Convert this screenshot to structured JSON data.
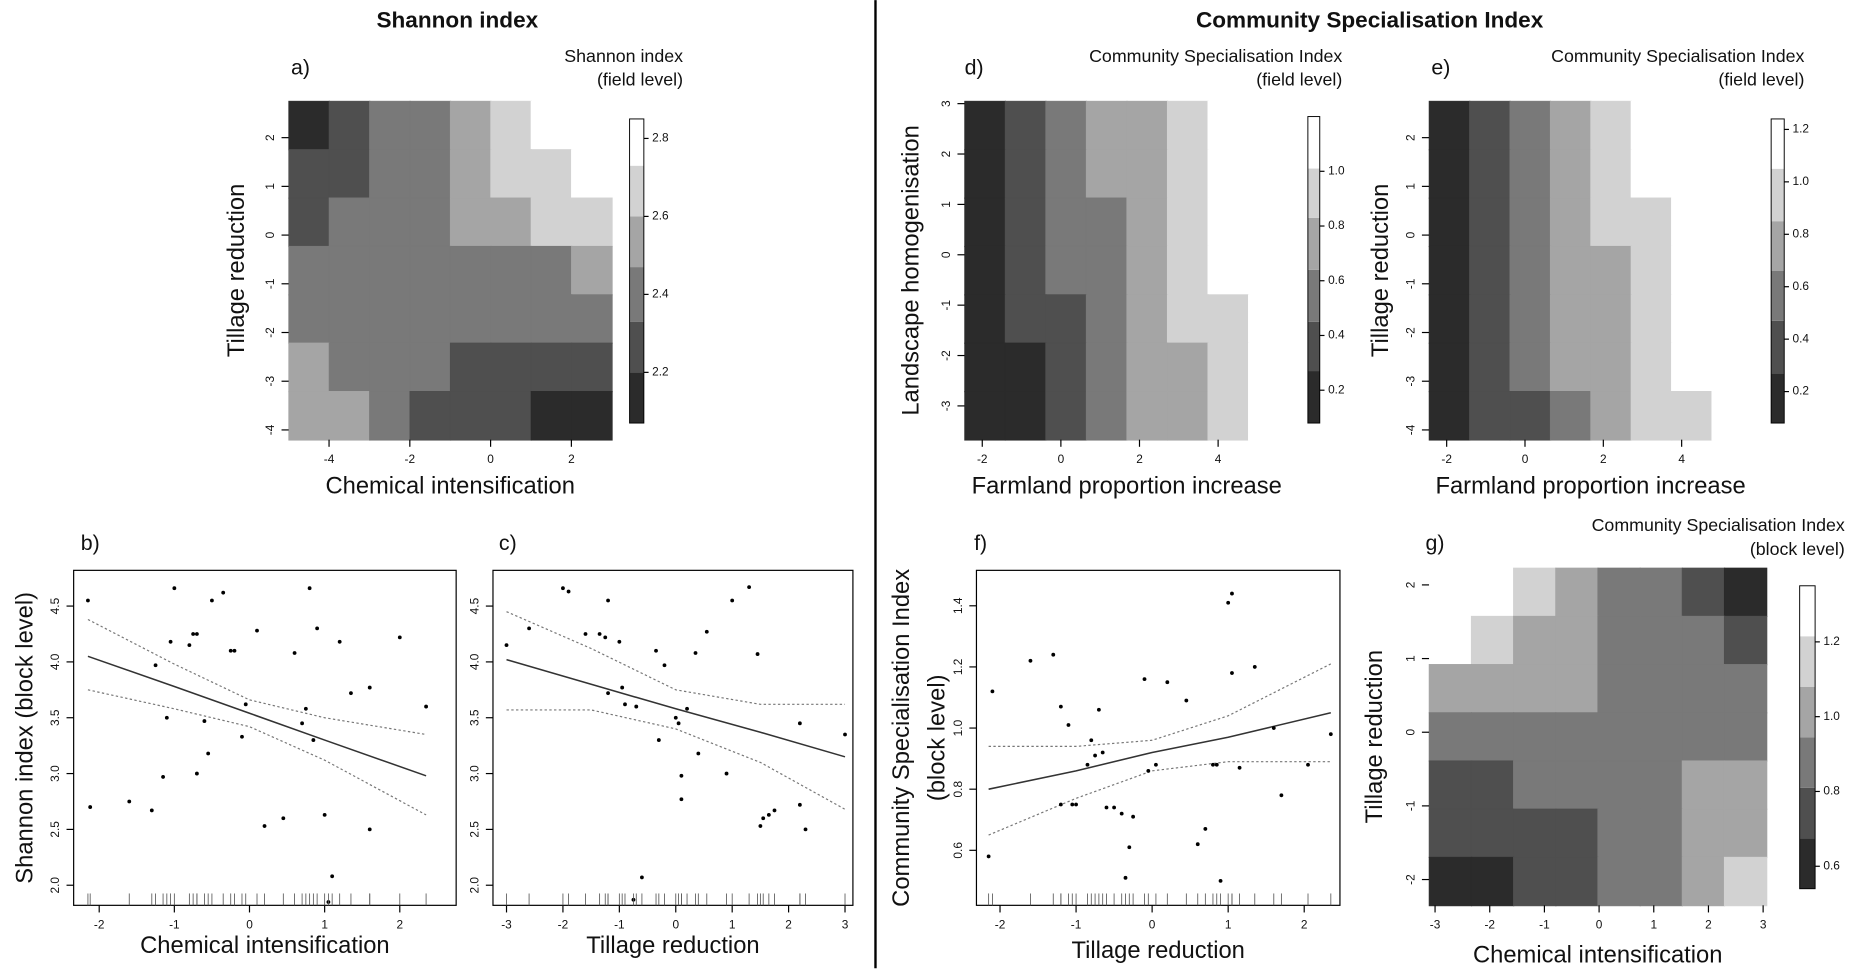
{
  "headers": [
    "Shannon index",
    "Community Specialisation Index"
  ],
  "chart_data": [
    {
      "type": "contour",
      "label": "a)",
      "legend_title": [
        "Shannon index",
        "(field level)"
      ],
      "xlabel": "Chemical intensification",
      "ylabel": "Tillage reduction",
      "xlim": [
        -5,
        3
      ],
      "ylim": [
        -4.2,
        2.75
      ],
      "xticks": [
        -4,
        -2,
        0,
        2
      ],
      "yticks": [
        2,
        1,
        0,
        -1,
        -2,
        -3,
        -4
      ],
      "levels": [
        2.07,
        2.2,
        2.33,
        2.47,
        2.6,
        2.73,
        2.85
      ],
      "colorbar_ticks": [
        2.2,
        2.4,
        2.6,
        2.8
      ],
      "colors": [
        "#2b2b2b",
        "#4f4f4f",
        "#797979",
        "#a5a5a5",
        "#d2d2d2",
        "#ffffff"
      ],
      "z": [
        [
          2.15,
          2.25,
          2.4,
          2.4,
          2.55,
          2.65,
          2.8,
          2.8
        ],
        [
          2.25,
          2.3,
          2.4,
          2.45,
          2.55,
          2.65,
          2.7,
          2.75
        ],
        [
          2.3,
          2.35,
          2.4,
          2.45,
          2.5,
          2.55,
          2.6,
          2.65
        ],
        [
          2.35,
          2.4,
          2.4,
          2.4,
          2.4,
          2.45,
          2.45,
          2.5
        ],
        [
          2.4,
          2.4,
          2.4,
          2.4,
          2.4,
          2.4,
          2.4,
          2.4
        ],
        [
          2.5,
          2.45,
          2.4,
          2.35,
          2.3,
          2.3,
          2.25,
          2.25
        ],
        [
          2.55,
          2.5,
          2.4,
          2.3,
          2.25,
          2.2,
          2.15,
          2.1
        ]
      ]
    },
    {
      "type": "scatter",
      "label": "b)",
      "xlabel": "Chemical intensification",
      "ylabel": [
        "Shannon index (block level)"
      ],
      "xlim": [
        -2.34,
        2.75
      ],
      "ylim": [
        1.82,
        4.82
      ],
      "xticks": [
        -2,
        -1,
        0,
        1,
        2
      ],
      "yticks": [
        {
          "value": 2,
          "label": "2.0"
        },
        2.5,
        {
          "value": 3,
          "label": "3.0"
        },
        3.5,
        {
          "value": 4,
          "label": "4.0"
        },
        4.5
      ],
      "x": [
        -2.15,
        -2.12,
        -1.6,
        -1.3,
        -1.25,
        -1.15,
        -1.1,
        -1.05,
        -1.0,
        -0.8,
        -0.75,
        -0.7,
        -0.7,
        -0.6,
        -0.55,
        -0.5,
        -0.35,
        -0.25,
        -0.2,
        -0.1,
        -0.05,
        0.1,
        0.2,
        0.45,
        0.6,
        0.7,
        0.75,
        0.8,
        0.85,
        0.9,
        1.0,
        1.05,
        1.1,
        1.2,
        1.35,
        1.6,
        1.6,
        2.0,
        2.35
      ],
      "values": [
        4.55,
        2.7,
        2.75,
        2.67,
        3.97,
        2.97,
        3.5,
        4.18,
        4.66,
        4.15,
        4.25,
        4.25,
        3.0,
        3.47,
        3.18,
        4.55,
        4.62,
        4.1,
        4.1,
        3.33,
        3.62,
        4.28,
        2.53,
        2.6,
        4.08,
        3.45,
        3.58,
        4.66,
        3.3,
        4.3,
        2.63,
        1.85,
        2.08,
        4.18,
        3.72,
        3.77,
        2.5,
        4.22,
        3.6
      ],
      "fit": {
        "x": [
          -2.15,
          -1,
          0,
          1,
          2.35
        ],
        "values": [
          4.05,
          3.78,
          3.54,
          3.3,
          2.98
        ],
        "upper": [
          4.38,
          3.98,
          3.66,
          3.5,
          3.35
        ],
        "lower": [
          3.75,
          3.58,
          3.42,
          3.12,
          2.63
        ]
      }
    },
    {
      "type": "scatter",
      "label": "c)",
      "xlabel": "Tillage reduction",
      "xlim": [
        -3.24,
        3.14
      ],
      "ylim": [
        1.82,
        4.82
      ],
      "xticks": [
        -3,
        -2,
        -1,
        0,
        1,
        2,
        3
      ],
      "yticks": [
        {
          "value": 2,
          "label": "2.0"
        },
        2.5,
        {
          "value": 3,
          "label": "3.0"
        },
        3.5,
        {
          "value": 4,
          "label": "4.0"
        },
        4.5
      ],
      "x": [
        -3,
        -2.6,
        -2.0,
        -1.9,
        -1.6,
        -1.35,
        -1.25,
        -1.2,
        -1.2,
        -1.0,
        -0.95,
        -0.9,
        -0.7,
        -0.6,
        -0.75,
        -0.35,
        -0.3,
        -0.2,
        0.0,
        0.05,
        0.1,
        0.1,
        0.2,
        0.35,
        0.4,
        0.55,
        0.9,
        1.0,
        1.3,
        1.45,
        1.5,
        1.55,
        1.65,
        1.75,
        2.2,
        2.2,
        2.3,
        3.0
      ],
      "values": [
        4.15,
        4.3,
        4.66,
        4.63,
        4.25,
        4.25,
        4.22,
        4.55,
        3.72,
        4.18,
        3.77,
        3.62,
        3.6,
        2.07,
        1.87,
        4.1,
        3.3,
        3.97,
        3.5,
        3.45,
        2.98,
        2.77,
        3.58,
        4.08,
        3.18,
        4.27,
        3.0,
        4.55,
        4.67,
        4.07,
        2.53,
        2.6,
        2.63,
        2.67,
        3.45,
        2.72,
        2.5,
        3.35
      ],
      "fit": {
        "x": [
          -3,
          -1.5,
          0,
          1.5,
          3
        ],
        "values": [
          4.02,
          3.8,
          3.58,
          3.37,
          3.15
        ],
        "upper": [
          4.45,
          4.12,
          3.75,
          3.62,
          3.62
        ],
        "lower": [
          3.57,
          3.57,
          3.4,
          3.1,
          2.68
        ]
      }
    },
    {
      "type": "contour",
      "label": "d)",
      "legend_title": [
        "Community Specialisation Index",
        "(field level)"
      ],
      "xlabel": "Farmland proportion increase",
      "ylabel": "Landscape homogenisation",
      "xlim": [
        -2.45,
        5.8
      ],
      "ylim": [
        -3.67,
        3.05
      ],
      "xticks": [
        -2,
        0,
        2,
        4
      ],
      "yticks": [
        3,
        2,
        1,
        0,
        -1,
        -2,
        -3
      ],
      "levels": [
        0.08,
        0.27,
        0.45,
        0.64,
        0.83,
        1.01,
        1.2
      ],
      "colorbar_ticks": [
        0.2,
        0.4,
        0.6,
        0.8,
        {
          "value": 1,
          "label": "1.0"
        }
      ],
      "colors": [
        "#2b2b2b",
        "#4f4f4f",
        "#797979",
        "#a5a5a5",
        "#d2d2d2",
        "#ffffff"
      ],
      "z": [
        [
          0.26,
          0.4,
          0.54,
          0.68,
          0.82,
          0.96,
          1.1,
          1.19
        ],
        [
          0.23,
          0.37,
          0.51,
          0.65,
          0.79,
          0.93,
          1.07,
          1.19
        ],
        [
          0.2,
          0.34,
          0.48,
          0.62,
          0.76,
          0.9,
          1.04,
          1.18
        ],
        [
          0.17,
          0.31,
          0.45,
          0.59,
          0.73,
          0.87,
          1.01,
          1.15
        ],
        [
          0.14,
          0.28,
          0.42,
          0.56,
          0.7,
          0.84,
          0.98,
          1.12
        ],
        [
          0.11,
          0.25,
          0.39,
          0.53,
          0.67,
          0.81,
          0.95,
          1.09
        ],
        [
          0.08,
          0.22,
          0.36,
          0.5,
          0.64,
          0.78,
          0.92,
          1.06
        ]
      ]
    },
    {
      "type": "contour",
      "label": "e)",
      "legend_title": [
        "Community Specialisation Index",
        "(field level)"
      ],
      "xlabel": "Farmland proportion increase",
      "ylabel": "Tillage reduction",
      "xlim": [
        -2.45,
        5.8
      ],
      "ylim": [
        -4.2,
        2.75
      ],
      "xticks": [
        -2,
        0,
        2,
        4
      ],
      "yticks": [
        2,
        1,
        0,
        -1,
        -2,
        -3,
        -4
      ],
      "levels": [
        0.08,
        0.27,
        0.47,
        0.66,
        0.85,
        1.05,
        1.24
      ],
      "colorbar_ticks": [
        0.2,
        0.4,
        0.6,
        0.8,
        {
          "value": 1,
          "label": "1.0"
        },
        1.2
      ],
      "colors": [
        "#2b2b2b",
        "#4f4f4f",
        "#797979",
        "#a5a5a5",
        "#d2d2d2",
        "#ffffff"
      ],
      "z": [
        [
          0.25,
          0.43,
          0.61,
          0.79,
          0.91,
          1.09,
          1.17,
          1.23
        ],
        [
          0.23,
          0.41,
          0.59,
          0.77,
          0.89,
          1.07,
          1.15,
          1.23
        ],
        [
          0.2,
          0.38,
          0.56,
          0.74,
          0.86,
          1.04,
          1.12,
          1.2
        ],
        [
          0.18,
          0.36,
          0.54,
          0.72,
          0.84,
          1.02,
          1.1,
          1.18
        ],
        [
          0.15,
          0.33,
          0.51,
          0.69,
          0.81,
          0.99,
          1.07,
          1.15
        ],
        [
          0.13,
          0.31,
          0.49,
          0.67,
          0.79,
          0.97,
          1.05,
          1.13
        ],
        [
          0.1,
          0.28,
          0.46,
          0.64,
          0.76,
          0.94,
          1.02,
          1.1
        ]
      ]
    },
    {
      "type": "scatter",
      "label": "f)",
      "xlabel": "Tillage reduction",
      "ylabel": [
        "Community Specialisation Index",
        "(block level)"
      ],
      "xlim": [
        -2.31,
        2.47
      ],
      "ylim": [
        0.42,
        1.516
      ],
      "xticks": [
        -2,
        -1,
        0,
        1,
        2
      ],
      "yticks": [
        0.6,
        0.8,
        {
          "value": 1,
          "label": "1.0"
        },
        1.2,
        1.4
      ],
      "x": [
        -2.15,
        -2.1,
        -1.6,
        -1.3,
        -1.2,
        -1.2,
        -1.1,
        -1.05,
        -1.0,
        -0.85,
        -0.8,
        -0.75,
        -0.7,
        -0.65,
        -0.6,
        -0.5,
        -0.4,
        -0.35,
        -0.3,
        -0.25,
        -0.1,
        -0.05,
        0.05,
        0.2,
        0.45,
        0.6,
        0.7,
        0.8,
        0.85,
        0.9,
        1.0,
        1.05,
        1.05,
        1.15,
        1.35,
        1.6,
        1.7,
        2.05,
        2.35
      ],
      "values": [
        0.58,
        1.12,
        1.22,
        1.24,
        1.07,
        0.75,
        1.01,
        0.75,
        0.75,
        0.88,
        0.96,
        0.91,
        1.06,
        0.92,
        0.74,
        0.74,
        0.72,
        0.51,
        0.61,
        0.71,
        1.16,
        0.86,
        0.88,
        1.15,
        1.09,
        0.62,
        0.67,
        0.88,
        0.88,
        0.5,
        1.41,
        1.44,
        1.18,
        0.87,
        1.2,
        1.0,
        0.78,
        0.88,
        0.98
      ],
      "fit": {
        "x": [
          -2.15,
          -1,
          0,
          1,
          2.35
        ],
        "values": [
          0.8,
          0.86,
          0.92,
          0.97,
          1.05
        ],
        "upper": [
          0.94,
          0.94,
          0.96,
          1.04,
          1.21
        ],
        "lower": [
          0.65,
          0.77,
          0.86,
          0.89,
          0.89
        ]
      }
    },
    {
      "type": "contour",
      "label": "g)",
      "legend_title": [
        "Community Specialisation Index",
        "(block level)"
      ],
      "xlabel": "Chemical intensification",
      "ylabel": "Tillage reduction",
      "xlim": [
        -3.11,
        3.06
      ],
      "ylim": [
        -2.35,
        2.23
      ],
      "xticks": [
        -3,
        -2,
        -1,
        0,
        1,
        2,
        3
      ],
      "yticks": [
        2,
        1,
        0,
        -1,
        -2
      ],
      "levels": [
        0.54,
        0.675,
        0.81,
        0.945,
        1.08,
        1.215,
        1.35
      ],
      "colorbar_ticks": [
        0.6,
        0.8,
        {
          "value": 1,
          "label": "1.0"
        },
        1.2
      ],
      "colors": [
        "#2b2b2b",
        "#4f4f4f",
        "#797979",
        "#a5a5a5",
        "#d2d2d2",
        "#ffffff"
      ],
      "z": [
        [
          1.3,
          1.25,
          1.1,
          1.0,
          0.9,
          0.85,
          0.8,
          0.65
        ],
        [
          1.25,
          1.15,
          1.05,
          0.95,
          0.9,
          0.85,
          0.82,
          0.75
        ],
        [
          1.0,
          1.0,
          1.0,
          0.95,
          0.9,
          0.88,
          0.85,
          0.85
        ],
        [
          0.88,
          0.88,
          0.88,
          0.88,
          0.88,
          0.88,
          0.88,
          0.88
        ],
        [
          0.8,
          0.8,
          0.82,
          0.85,
          0.88,
          0.9,
          0.95,
          1.0
        ],
        [
          0.7,
          0.72,
          0.75,
          0.8,
          0.85,
          0.9,
          1.0,
          1.05
        ],
        [
          0.6,
          0.65,
          0.72,
          0.78,
          0.85,
          0.9,
          1.05,
          1.1
        ]
      ]
    }
  ]
}
